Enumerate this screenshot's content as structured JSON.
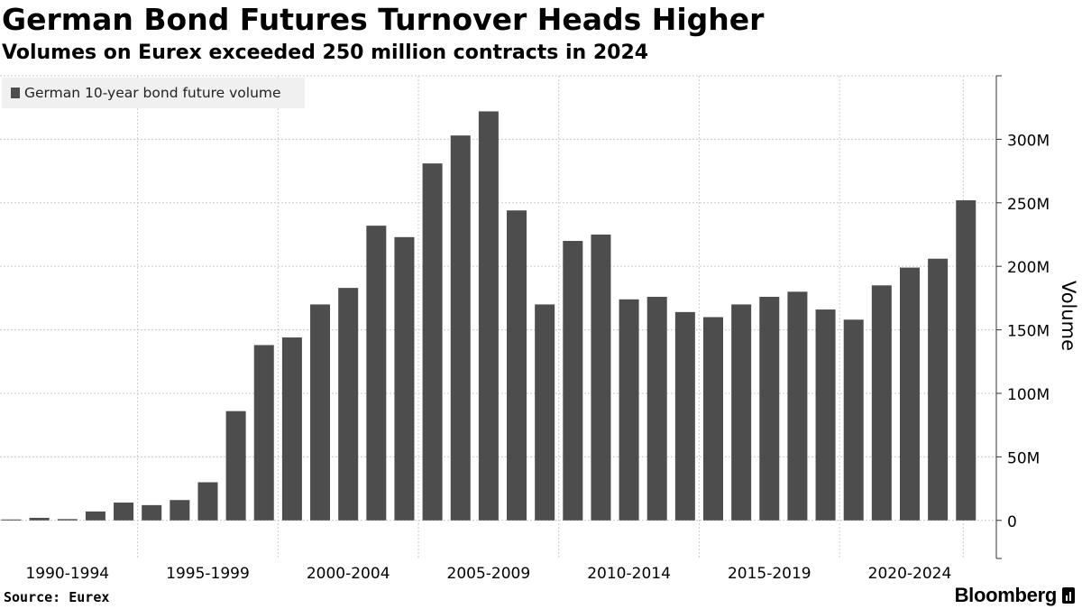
{
  "header": {
    "title": "German Bond Futures Turnover Heads Higher",
    "subtitle": "Volumes on Eurex exceeded 250 million contracts in 2024"
  },
  "footer": {
    "source": "Source: Eurex",
    "brand": "Bloomberg"
  },
  "colors": {
    "bar": "#4d4d4d",
    "grid": "#cccccc",
    "axis": "#333333",
    "legend_bg": "#f0f0f0"
  },
  "chart_data": {
    "type": "bar",
    "categories": [
      "1990",
      "1991",
      "1992",
      "1993",
      "1994",
      "1995",
      "1996",
      "1997",
      "1998",
      "1999",
      "2000",
      "2001",
      "2002",
      "2003",
      "2004",
      "2005",
      "2006",
      "2007",
      "2008",
      "2009",
      "2010",
      "2011",
      "2012",
      "2013",
      "2014",
      "2015",
      "2016",
      "2017",
      "2018",
      "2019",
      "2020",
      "2021",
      "2022",
      "2023",
      "2024"
    ],
    "series": [
      {
        "name": "German 10-year bond future volume",
        "values": [
          0.5,
          2,
          1,
          7,
          14,
          12,
          16,
          30,
          86,
          138,
          144,
          170,
          183,
          232,
          223,
          281,
          303,
          322,
          244,
          170,
          220,
          225,
          174,
          176,
          164,
          160,
          170,
          176,
          180,
          166,
          158,
          185,
          199,
          206,
          252
        ]
      }
    ],
    "x_tick_labels": [
      "1990-1994",
      "1995-1999",
      "2000-2004",
      "2005-2009",
      "2010-2014",
      "2015-2019",
      "2020-2024"
    ],
    "y_ticks": [
      0,
      50,
      100,
      150,
      200,
      250,
      300
    ],
    "y_tick_labels": [
      "0",
      "50M",
      "100M",
      "150M",
      "200M",
      "250M",
      "300M"
    ],
    "ylabel": "Volume",
    "xlabel": "",
    "unit": "million contracts",
    "ylim": [
      -30,
      350
    ],
    "grid": true,
    "legend_position": "top-left"
  }
}
